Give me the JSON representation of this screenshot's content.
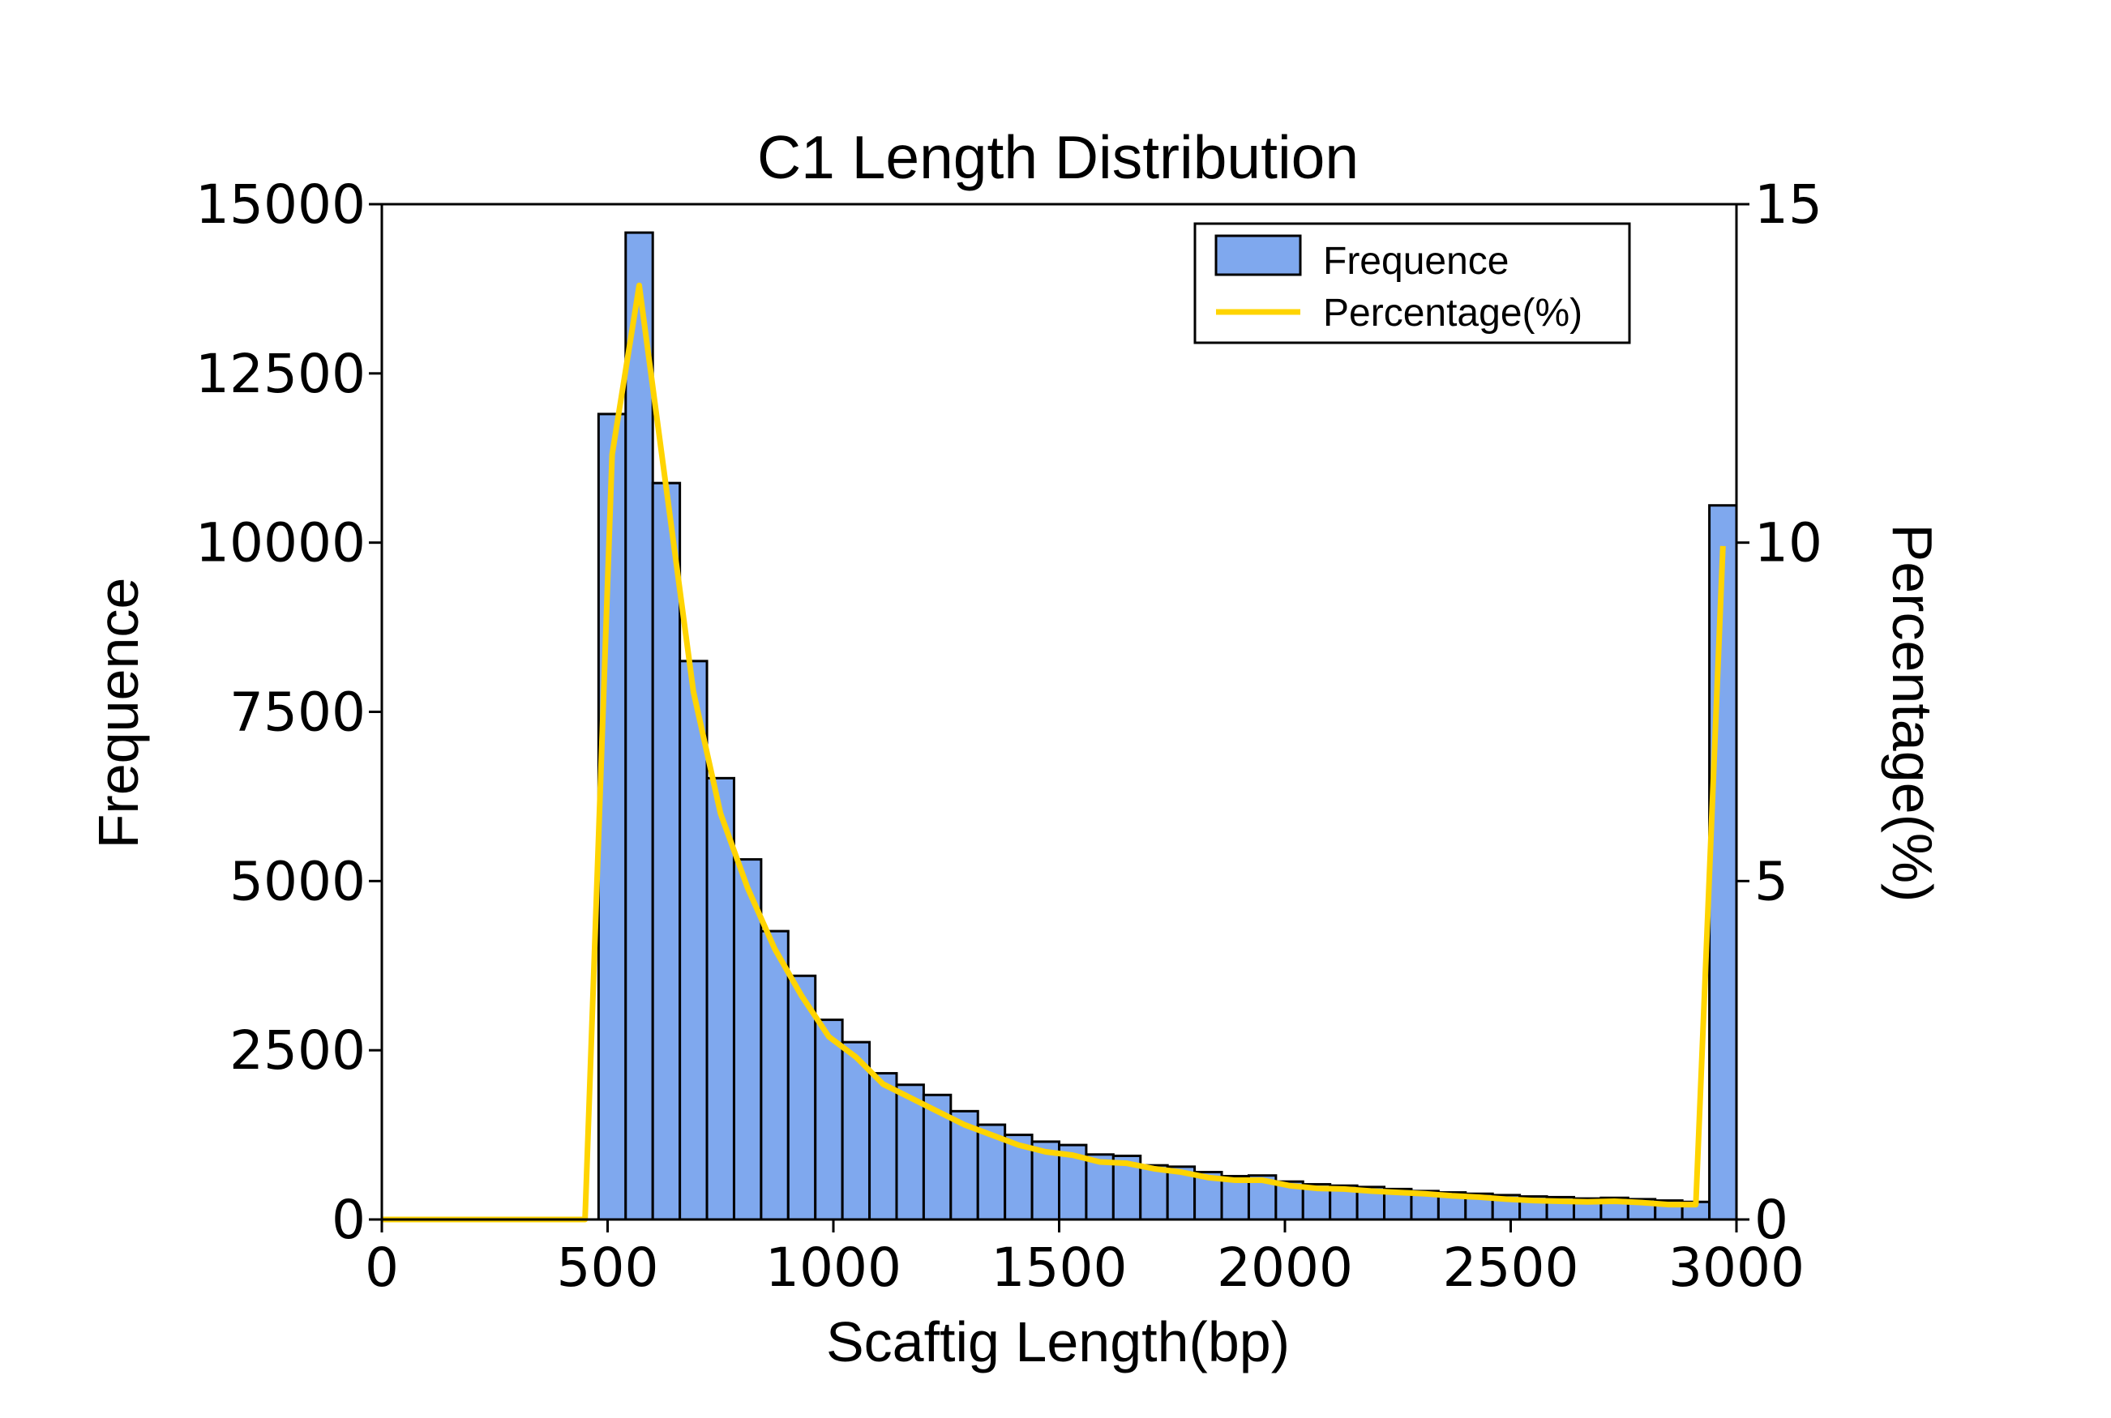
{
  "chart_data": {
    "type": "bar+line",
    "title": "C1 Length Distribution",
    "xlabel": "Scaftig Length(bp)",
    "ylabel": "Frequence",
    "y2label": "Percentage(%)",
    "xlim": [
      0,
      3000
    ],
    "ylim": [
      0,
      15000
    ],
    "y2lim": [
      0,
      15
    ],
    "xticks": [
      "0",
      "500",
      "1000",
      "1500",
      "2000",
      "2500",
      "3000"
    ],
    "xtick_values": [
      0,
      500,
      1000,
      1500,
      2000,
      2500,
      3000
    ],
    "yticks": [
      "0",
      "2500",
      "5000",
      "7500",
      "10000",
      "12500",
      "15000"
    ],
    "ytick_values": [
      0,
      2500,
      5000,
      7500,
      10000,
      12500,
      15000
    ],
    "y2ticks": [
      "0",
      "5",
      "10",
      "15"
    ],
    "y2tick_values": [
      0,
      5,
      10,
      15
    ],
    "bin_width": 60,
    "bar_color": "#7fa8ee",
    "line_color": "#ffd400",
    "legend": {
      "position": "top-right",
      "bar_label": "Frequence",
      "line_label": "Percentage(%)"
    },
    "series": [
      {
        "name": "Frequence",
        "type": "bar",
        "bin_starts": [
          480,
          540,
          600,
          660,
          720,
          780,
          840,
          900,
          960,
          1020,
          1080,
          1140,
          1200,
          1260,
          1320,
          1380,
          1440,
          1500,
          1560,
          1620,
          1680,
          1740,
          1800,
          1860,
          1920,
          1980,
          2040,
          2100,
          2160,
          2220,
          2280,
          2340,
          2400,
          2460,
          2520,
          2580,
          2640,
          2700,
          2760,
          2820,
          2880,
          2940
        ],
        "values": [
          11900,
          14580,
          10880,
          8250,
          6520,
          5320,
          4260,
          3600,
          2950,
          2620,
          2160,
          1990,
          1840,
          1600,
          1400,
          1250,
          1150,
          1100,
          960,
          940,
          800,
          780,
          700,
          640,
          650,
          560,
          520,
          500,
          480,
          450,
          420,
          400,
          380,
          360,
          340,
          330,
          310,
          320,
          300,
          280,
          260,
          10550
        ]
      },
      {
        "name": "Percentage(%)",
        "type": "line",
        "x": [
          0,
          450,
          510,
          570,
          630,
          690,
          750,
          810,
          870,
          930,
          990,
          1050,
          1110,
          1170,
          1230,
          1290,
          1350,
          1410,
          1470,
          1530,
          1590,
          1650,
          1710,
          1770,
          1830,
          1890,
          1950,
          2010,
          2070,
          2130,
          2190,
          2250,
          2310,
          2370,
          2430,
          2490,
          2550,
          2610,
          2670,
          2730,
          2790,
          2850,
          2910,
          2970
        ],
        "values": [
          0,
          0,
          11.3,
          13.8,
          10.8,
          7.8,
          6.0,
          4.9,
          4.0,
          3.3,
          2.7,
          2.4,
          2.0,
          1.8,
          1.6,
          1.4,
          1.25,
          1.1,
          1.0,
          0.95,
          0.85,
          0.83,
          0.75,
          0.7,
          0.62,
          0.58,
          0.58,
          0.5,
          0.46,
          0.45,
          0.42,
          0.4,
          0.38,
          0.35,
          0.33,
          0.3,
          0.28,
          0.27,
          0.26,
          0.27,
          0.25,
          0.22,
          0.22,
          9.95
        ]
      }
    ]
  }
}
